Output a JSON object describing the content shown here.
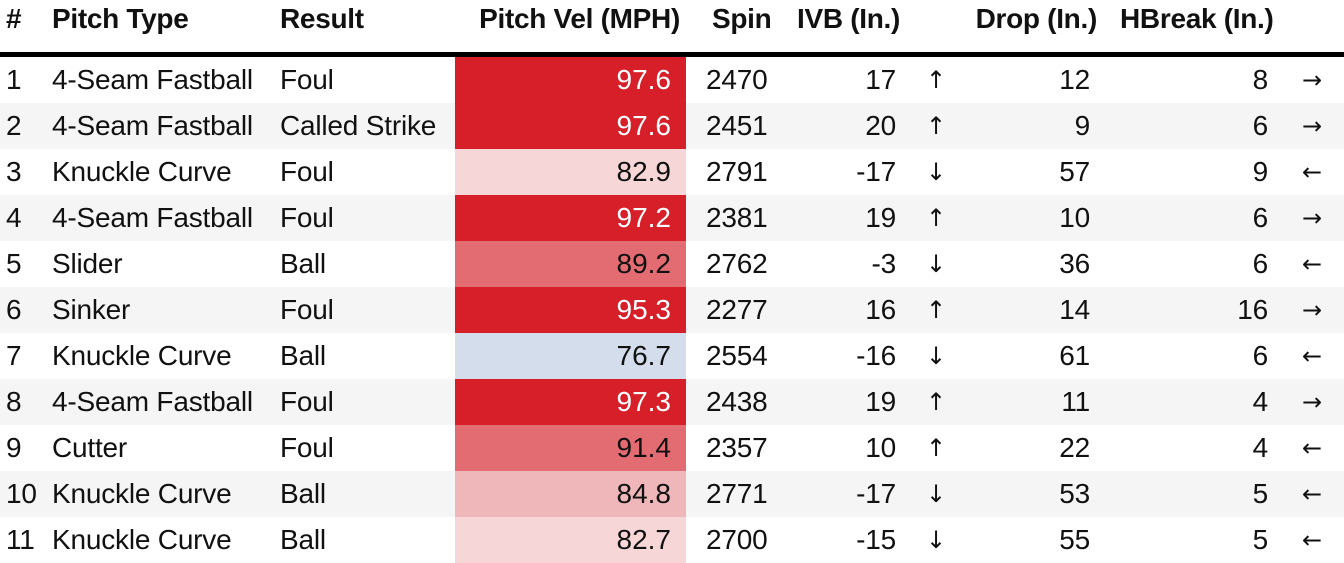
{
  "columns": {
    "num": "#",
    "pitch_type": "Pitch Type",
    "result": "Result",
    "velocity": "Pitch Vel (MPH)",
    "spin": "Spin",
    "ivb": "IVB (In.)",
    "drop": "Drop (In.)",
    "hbreak": "HBreak (In.)"
  },
  "colors": {
    "vel_hot": "#d71f2a",
    "vel_warm": "#e36b72",
    "vel_mid": "#f0b7bb",
    "vel_light": "#f7d6d8",
    "vel_cool": "#d3ddeb",
    "row_alt": "#f5f5f5",
    "header_rule": "#000000"
  },
  "rows": [
    {
      "num": "1",
      "pitch_type": "4-Seam Fastball",
      "result": "Foul",
      "velocity": "97.6",
      "spin": "2470",
      "ivb": "17",
      "ivb_arrow": "↑",
      "drop": "12",
      "hbreak": "8",
      "hbreak_arrow": "→"
    },
    {
      "num": "2",
      "pitch_type": "4-Seam Fastball",
      "result": "Called Strike",
      "velocity": "97.6",
      "spin": "2451",
      "ivb": "20",
      "ivb_arrow": "↑",
      "drop": "9",
      "hbreak": "6",
      "hbreak_arrow": "→"
    },
    {
      "num": "3",
      "pitch_type": "Knuckle Curve",
      "result": "Foul",
      "velocity": "82.9",
      "spin": "2791",
      "ivb": "-17",
      "ivb_arrow": "↓",
      "drop": "57",
      "hbreak": "9",
      "hbreak_arrow": "←"
    },
    {
      "num": "4",
      "pitch_type": "4-Seam Fastball",
      "result": "Foul",
      "velocity": "97.2",
      "spin": "2381",
      "ivb": "19",
      "ivb_arrow": "↑",
      "drop": "10",
      "hbreak": "6",
      "hbreak_arrow": "→"
    },
    {
      "num": "5",
      "pitch_type": "Slider",
      "result": "Ball",
      "velocity": "89.2",
      "spin": "2762",
      "ivb": "-3",
      "ivb_arrow": "↓",
      "drop": "36",
      "hbreak": "6",
      "hbreak_arrow": "←"
    },
    {
      "num": "6",
      "pitch_type": "Sinker",
      "result": "Foul",
      "velocity": "95.3",
      "spin": "2277",
      "ivb": "16",
      "ivb_arrow": "↑",
      "drop": "14",
      "hbreak": "16",
      "hbreak_arrow": "→"
    },
    {
      "num": "7",
      "pitch_type": "Knuckle Curve",
      "result": "Ball",
      "velocity": "76.7",
      "spin": "2554",
      "ivb": "-16",
      "ivb_arrow": "↓",
      "drop": "61",
      "hbreak": "6",
      "hbreak_arrow": "←"
    },
    {
      "num": "8",
      "pitch_type": "4-Seam Fastball",
      "result": "Foul",
      "velocity": "97.3",
      "spin": "2438",
      "ivb": "19",
      "ivb_arrow": "↑",
      "drop": "11",
      "hbreak": "4",
      "hbreak_arrow": "→"
    },
    {
      "num": "9",
      "pitch_type": "Cutter",
      "result": "Foul",
      "velocity": "91.4",
      "spin": "2357",
      "ivb": "10",
      "ivb_arrow": "↑",
      "drop": "22",
      "hbreak": "4",
      "hbreak_arrow": "←"
    },
    {
      "num": "10",
      "pitch_type": "Knuckle Curve",
      "result": "Ball",
      "velocity": "84.8",
      "spin": "2771",
      "ivb": "-17",
      "ivb_arrow": "↓",
      "drop": "53",
      "hbreak": "5",
      "hbreak_arrow": "←"
    },
    {
      "num": "11",
      "pitch_type": "Knuckle Curve",
      "result": "Ball",
      "velocity": "82.7",
      "spin": "2700",
      "ivb": "-15",
      "ivb_arrow": "↓",
      "drop": "55",
      "hbreak": "5",
      "hbreak_arrow": "←"
    }
  ]
}
